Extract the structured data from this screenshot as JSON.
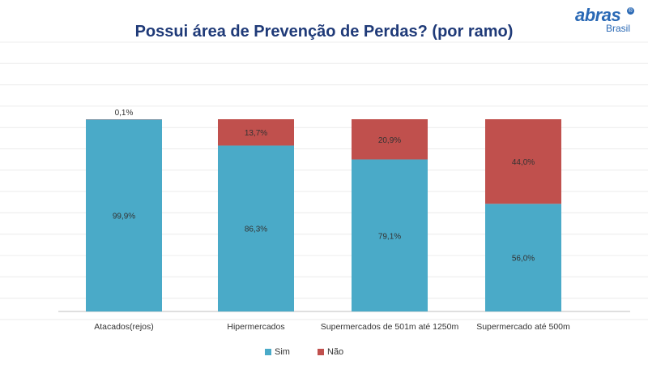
{
  "title": "Possui área de Prevenção de Perdas? (por ramo)",
  "logo": {
    "main": "abras",
    "sub": "Brasil",
    "mark": "®"
  },
  "chart_data": {
    "type": "bar",
    "stacked": true,
    "title": "Possui área de Prevenção de Perdas? (por ramo)",
    "categories": [
      "Atacados(rejos)",
      "Hipermercados",
      "Supermercados de 501m até 1250m",
      "Supermercado até 500m"
    ],
    "series": [
      {
        "name": "Sim",
        "values": [
          99.9,
          86.3,
          79.1,
          56.0
        ],
        "labels": [
          "99,9%",
          "86,3%",
          "79,1%",
          "56,0%"
        ],
        "color": "#4aaac8"
      },
      {
        "name": "Não",
        "values": [
          0.1,
          13.7,
          20.9,
          44.0
        ],
        "labels": [
          "0,1%",
          "13,7%",
          "20,9%",
          "44,0%"
        ],
        "color": "#c0504d"
      }
    ],
    "ylim": [
      0,
      100
    ],
    "grid": true,
    "legend": "bottom"
  }
}
